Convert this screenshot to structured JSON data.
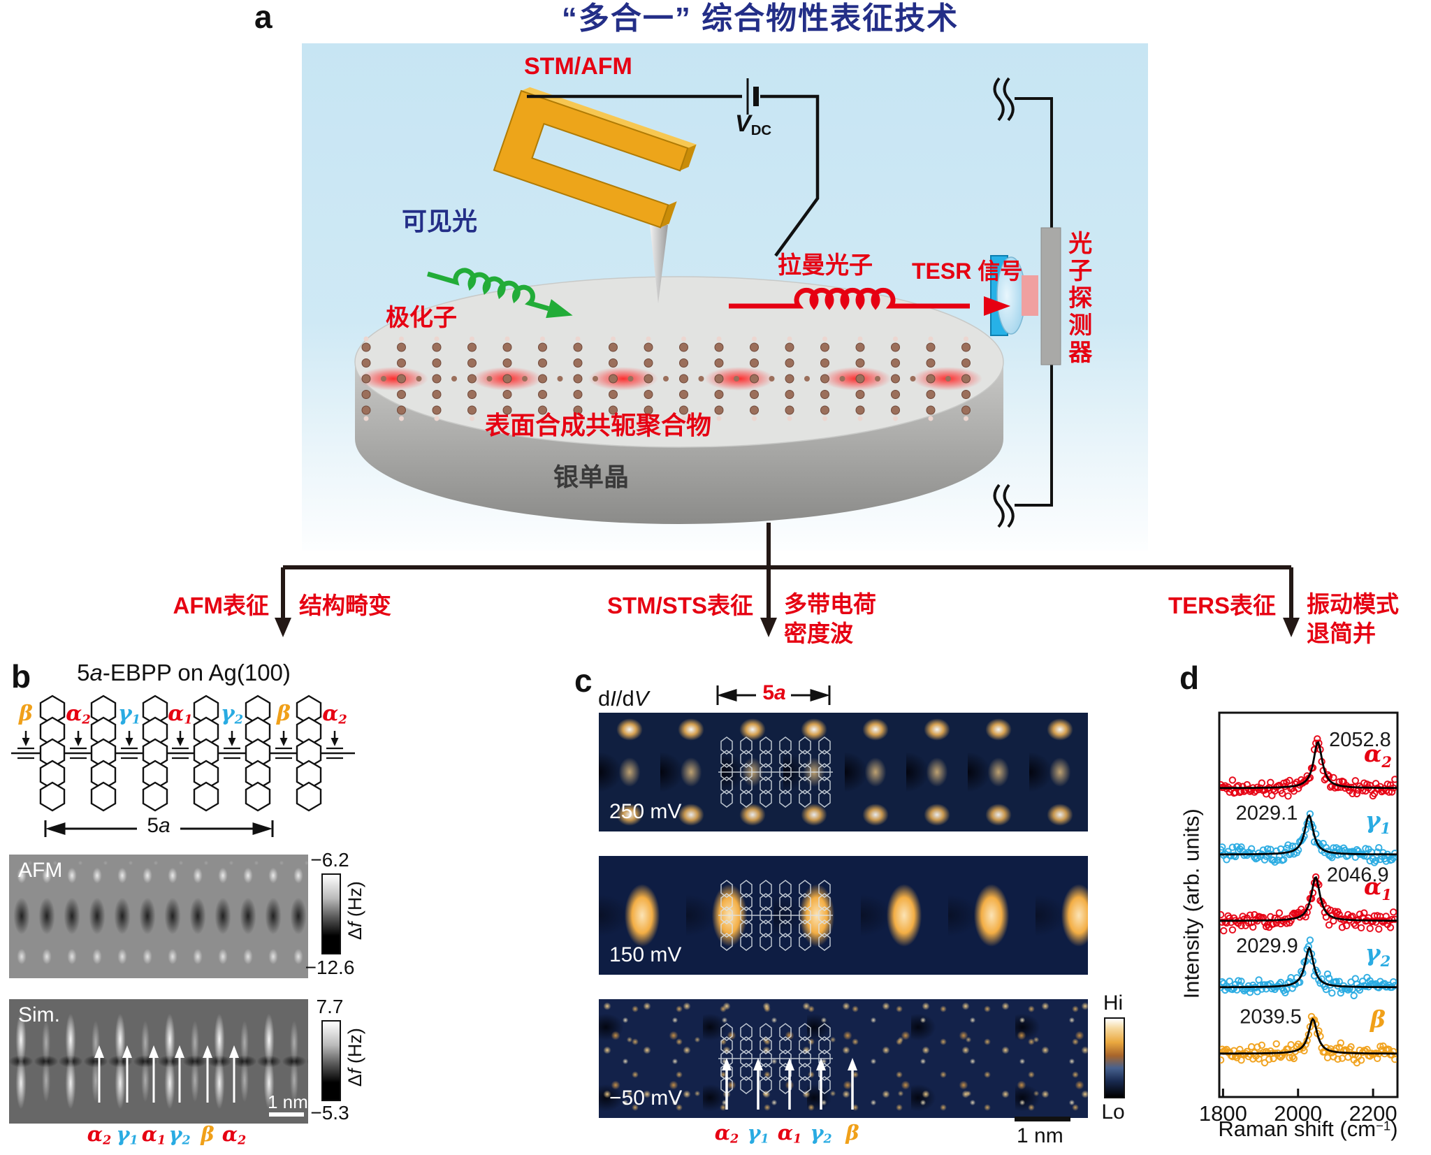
{
  "title": "“多合一” 综合物性表征技术",
  "panel_labels": {
    "a": "a",
    "b": "b",
    "c": "c",
    "d": "d"
  },
  "panel_a": {
    "stm_afm": "STM/AFM",
    "bias": {
      "v": "V",
      "sub": "DC"
    },
    "visible_light": "可见光",
    "polaron": "极化子",
    "raman_photon": "拉曼光子",
    "tesr_signal": "TESR 信号",
    "photon_detector": "光子探测器",
    "polymer": "表面合成共轭聚合物",
    "substrate": "银单晶"
  },
  "branches": [
    {
      "method": "AFM表征",
      "result_lines": [
        "结构畸变"
      ]
    },
    {
      "method": "STM/STS表征",
      "result_lines": [
        "多带电荷",
        "密度波"
      ]
    },
    {
      "method": "TERS表征",
      "result_lines": [
        "振动模式",
        "退简并"
      ]
    }
  ],
  "panel_b": {
    "title": {
      "pre": "5",
      "it": "a",
      "post": "-EBPP on Ag(100)"
    },
    "site_labels": [
      {
        "g": "β",
        "sub": "",
        "color": "#f0a019"
      },
      {
        "g": "α",
        "sub": "2",
        "color": "#e60012"
      },
      {
        "g": "γ",
        "sub": "1",
        "color": "#29abe2"
      },
      {
        "g": "α",
        "sub": "1",
        "color": "#e60012"
      },
      {
        "g": "γ",
        "sub": "2",
        "color": "#29abe2"
      },
      {
        "g": "β",
        "sub": "",
        "color": "#f0a019"
      },
      {
        "g": "α",
        "sub": "2",
        "color": "#e60012"
      }
    ],
    "span": {
      "pre": "5",
      "it": "a"
    },
    "afm_label": "AFM",
    "sim_label": "Sim.",
    "afm_scale": {
      "top": "−6.2",
      "bottom": "−12.6"
    },
    "sim_scale": {
      "top": "7.7",
      "bottom": "−5.3"
    },
    "scale_unit": {
      "pre": "Δ",
      "it": "f",
      "post": " (Hz)"
    },
    "scalebar": "1 nm",
    "bottom_labels": [
      {
        "g": "α",
        "sub": "2",
        "color": "#e60012"
      },
      {
        "g": "γ",
        "sub": "1",
        "color": "#29abe2"
      },
      {
        "g": "α",
        "sub": "1",
        "color": "#e60012"
      },
      {
        "g": "γ",
        "sub": "2",
        "color": "#29abe2"
      },
      {
        "g": "β",
        "sub": "",
        "color": "#f0a019"
      },
      {
        "g": "α",
        "sub": "2",
        "color": "#e60012"
      }
    ]
  },
  "panel_c": {
    "didv": {
      "p1": "d",
      "p2": "I",
      "p3": "/d",
      "p4": "V"
    },
    "span": {
      "pre": "5",
      "it": "a"
    },
    "maps": [
      {
        "bias": "250 mV"
      },
      {
        "bias": "150 mV"
      },
      {
        "bias": "−50 mV"
      }
    ],
    "colorbar": {
      "hi": "Hi",
      "lo": "Lo"
    },
    "scalebar": "1 nm",
    "site_labels": [
      {
        "g": "α",
        "sub": "2",
        "color": "#e60012"
      },
      {
        "g": "γ",
        "sub": "1",
        "color": "#29abe2"
      },
      {
        "g": "α",
        "sub": "1",
        "color": "#e60012"
      },
      {
        "g": "γ",
        "sub": "2",
        "color": "#29abe2"
      },
      {
        "g": "β",
        "sub": "",
        "color": "#f0a019"
      }
    ]
  },
  "panel_d": {
    "ylabel": "Intensity (arb. units)",
    "xlabel": {
      "pre": "Raman shift (cm",
      "sup": "−1",
      "post": ")"
    },
    "xticks": [
      "1800",
      "2000",
      "2200"
    ]
  },
  "chart_data": {
    "type": "scatter",
    "title": "TERS spectra of individual vibrational modes (open-circle data with black Lorentzian fits, vertically offset)",
    "xlabel": "Raman shift (cm−1)",
    "ylabel": "Intensity (arb. units)",
    "xlim": [
      1790,
      2265
    ],
    "xticks": [
      1800,
      2000,
      2200
    ],
    "peak_hwhm_cm": 14,
    "series": [
      {
        "name": {
          "g": "α",
          "sub": "2"
        },
        "color": "#e60012",
        "peak_center": 2052.8,
        "peak_label": "2052.8",
        "label_side": "right",
        "rel_height": 1.0
      },
      {
        "name": {
          "g": "γ",
          "sub": "1"
        },
        "color": "#29abe2",
        "peak_center": 2029.1,
        "peak_label": "2029.1",
        "label_side": "left",
        "rel_height": 0.85
      },
      {
        "name": {
          "g": "α",
          "sub": "1"
        },
        "color": "#e60012",
        "peak_center": 2046.9,
        "peak_label": "2046.9",
        "label_side": "right",
        "rel_height": 0.95
      },
      {
        "name": {
          "g": "γ",
          "sub": "2"
        },
        "color": "#29abe2",
        "peak_center": 2029.9,
        "peak_label": "2029.9",
        "label_side": "left",
        "rel_height": 0.85
      },
      {
        "name": {
          "g": "β",
          "sub": ""
        },
        "color": "#f0a019",
        "peak_center": 2039.5,
        "peak_label": "2039.5",
        "label_side": "left",
        "rel_height": 0.75
      }
    ]
  },
  "colors": {
    "accent_red": "#e60012",
    "gamma_blue": "#29abe2",
    "beta_orange": "#f0a019",
    "title_blue": "#232e87",
    "sky_blue": "#c7e5f3",
    "cantilever_orange": "#eda51a",
    "green_light": "#22ac38"
  }
}
